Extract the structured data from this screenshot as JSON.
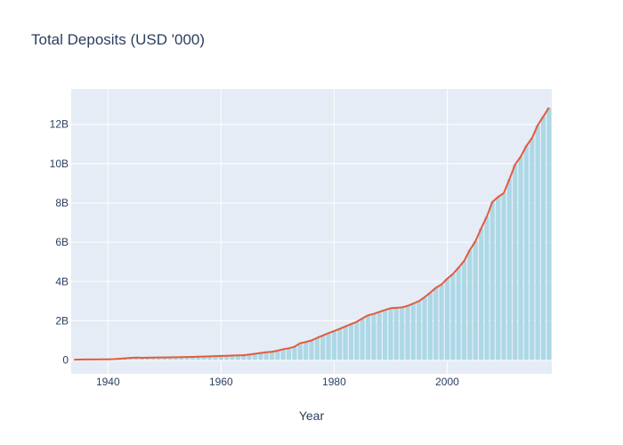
{
  "chart_data": {
    "type": "bar+line",
    "title": "Total Deposits (USD '000)",
    "xlabel": "Year",
    "ylabel": "",
    "xlim": [
      1933.5,
      2018.5
    ],
    "ylim": [
      -700000000,
      13800000000
    ],
    "x_ticks": [
      1940,
      1960,
      1980,
      2000
    ],
    "y_ticks": [
      {
        "value": 0,
        "label": "0"
      },
      {
        "value": 2000000000,
        "label": "2B"
      },
      {
        "value": 4000000000,
        "label": "4B"
      },
      {
        "value": 6000000000,
        "label": "6B"
      },
      {
        "value": 8000000000,
        "label": "8B"
      },
      {
        "value": 10000000000,
        "label": "10B"
      },
      {
        "value": 12000000000,
        "label": "12B"
      }
    ],
    "grid": true,
    "colors": {
      "bar": "#add8e6",
      "line": "#e45a3c",
      "plot_bg": "#e5ecf6",
      "grid": "#ffffff",
      "text": "#2a3f5f"
    },
    "x": [
      1934,
      1935,
      1936,
      1937,
      1938,
      1939,
      1940,
      1941,
      1942,
      1943,
      1944,
      1945,
      1946,
      1947,
      1948,
      1949,
      1950,
      1951,
      1952,
      1953,
      1954,
      1955,
      1956,
      1957,
      1958,
      1959,
      1960,
      1961,
      1962,
      1963,
      1964,
      1965,
      1966,
      1967,
      1968,
      1969,
      1970,
      1971,
      1972,
      1973,
      1974,
      1975,
      1976,
      1977,
      1978,
      1979,
      1980,
      1981,
      1982,
      1983,
      1984,
      1985,
      1986,
      1987,
      1988,
      1989,
      1990,
      1991,
      1992,
      1993,
      1994,
      1995,
      1996,
      1997,
      1998,
      1999,
      2000,
      2001,
      2002,
      2003,
      2004,
      2005,
      2006,
      2007,
      2008,
      2009,
      2010,
      2011,
      2012,
      2013,
      2014,
      2015,
      2016,
      2017,
      2018
    ],
    "values": [
      20000000,
      25000000,
      28000000,
      30000000,
      32000000,
      35000000,
      38000000,
      45000000,
      65000000,
      85000000,
      110000000,
      125000000,
      118000000,
      122000000,
      125000000,
      130000000,
      135000000,
      140000000,
      145000000,
      150000000,
      155000000,
      160000000,
      170000000,
      180000000,
      190000000,
      200000000,
      210000000,
      220000000,
      230000000,
      240000000,
      245000000,
      280000000,
      320000000,
      360000000,
      400000000,
      420000000,
      480000000,
      550000000,
      600000000,
      680000000,
      860000000,
      920000000,
      1000000000,
      1130000000,
      1250000000,
      1370000000,
      1480000000,
      1590000000,
      1710000000,
      1830000000,
      1950000000,
      2120000000,
      2280000000,
      2350000000,
      2450000000,
      2550000000,
      2640000000,
      2660000000,
      2680000000,
      2760000000,
      2880000000,
      3000000000,
      3200000000,
      3430000000,
      3680000000,
      3850000000,
      4140000000,
      4380000000,
      4700000000,
      5050000000,
      5600000000,
      6050000000,
      6700000000,
      7300000000,
      8050000000,
      8300000000,
      8500000000,
      9200000000,
      9950000000,
      10350000000,
      10900000000,
      11300000000,
      11950000000,
      12400000000,
      12850000000
    ]
  }
}
